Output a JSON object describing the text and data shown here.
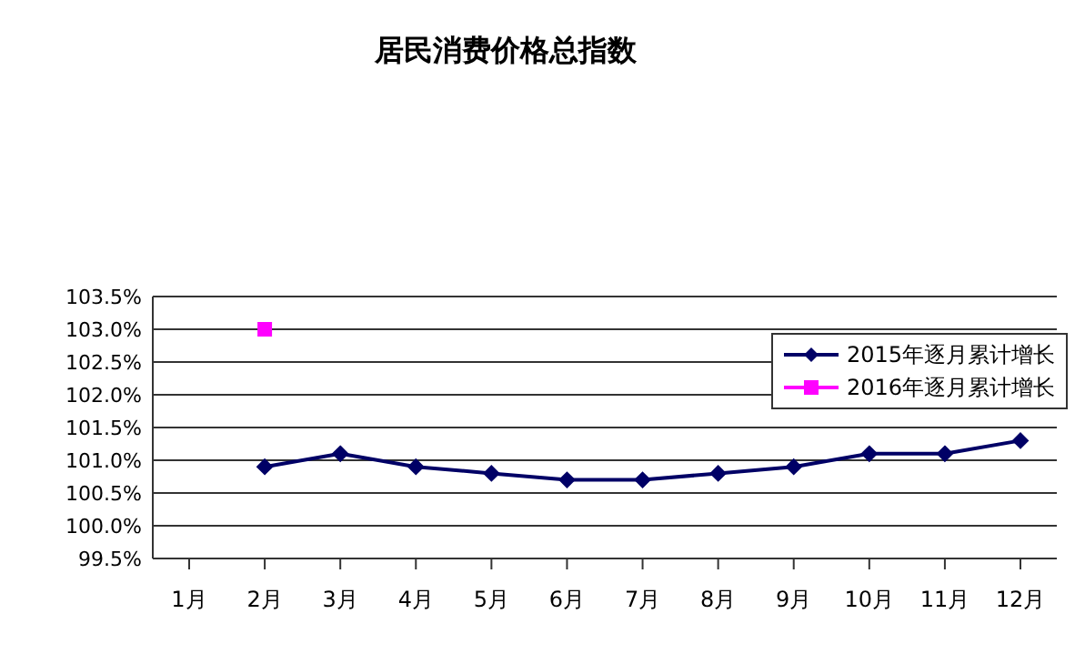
{
  "chart_data": {
    "type": "line",
    "title": "居民消费价格总指数",
    "categories": [
      "1月",
      "2月",
      "3月",
      "4月",
      "5月",
      "6月",
      "7月",
      "8月",
      "9月",
      "10月",
      "11月",
      "12月"
    ],
    "series": [
      {
        "name": "2015年逐月累计增长",
        "color": "#000066",
        "marker": "diamond",
        "values": [
          null,
          100.9,
          101.1,
          100.9,
          100.8,
          100.7,
          100.7,
          100.8,
          100.9,
          101.1,
          101.1,
          101.3
        ]
      },
      {
        "name": "2016年逐月累计增长",
        "color": "#ff00ff",
        "marker": "square",
        "values": [
          null,
          103.0,
          null,
          null,
          null,
          null,
          null,
          null,
          null,
          null,
          null,
          null
        ]
      }
    ],
    "ylim": [
      99.5,
      103.5
    ],
    "yticks": [
      {
        "value": 99.5,
        "label": "99.5%"
      },
      {
        "value": 100.0,
        "label": "100.0%"
      },
      {
        "value": 100.5,
        "label": "100.5%"
      },
      {
        "value": 101.0,
        "label": "101.0%"
      },
      {
        "value": 101.5,
        "label": "101.5%"
      },
      {
        "value": 102.0,
        "label": "102.0%"
      },
      {
        "value": 102.5,
        "label": "102.5%"
      },
      {
        "value": 103.0,
        "label": "103.0%"
      },
      {
        "value": 103.5,
        "label": "103.5%"
      }
    ],
    "grid": "y",
    "legend": "top right"
  }
}
